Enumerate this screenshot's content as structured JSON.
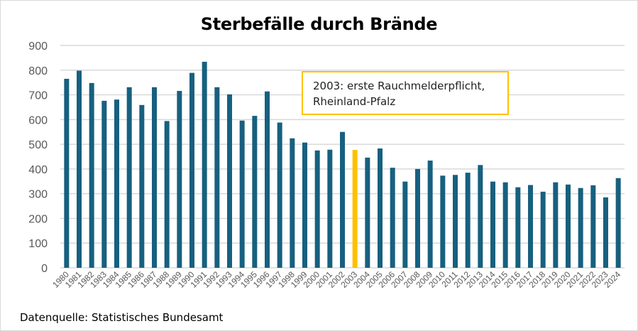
{
  "chart_data": {
    "type": "bar",
    "title": "Sterbefälle durch Brände",
    "xlabel": "",
    "ylabel": "",
    "ylim": [
      0,
      900
    ],
    "yticks": [
      0,
      100,
      200,
      300,
      400,
      500,
      600,
      700,
      800,
      900
    ],
    "grid": true,
    "categories": [
      "1980",
      "1981",
      "1982",
      "1983",
      "1984",
      "1985",
      "1986",
      "1987",
      "1988",
      "1989",
      "1990",
      "1991",
      "1992",
      "1993",
      "1994",
      "1995",
      "1996",
      "1997",
      "1998",
      "1999",
      "2000",
      "2001",
      "2002",
      "2003",
      "2004",
      "2005",
      "2006",
      "2007",
      "2008",
      "2009",
      "2010",
      "2011",
      "2012",
      "2013",
      "2014",
      "2015",
      "2016",
      "2017",
      "2018",
      "2019",
      "2020",
      "2021",
      "2022",
      "2023",
      "2024"
    ],
    "values": [
      765,
      798,
      748,
      676,
      681,
      731,
      659,
      731,
      594,
      716,
      789,
      834,
      731,
      702,
      596,
      615,
      714,
      588,
      524,
      507,
      475,
      478,
      550,
      477,
      446,
      483,
      405,
      349,
      400,
      434,
      373,
      376,
      385,
      416,
      349,
      346,
      326,
      335,
      308,
      346,
      337,
      323,
      334,
      285,
      363
    ],
    "highlight_category": "2003",
    "colors": {
      "bar": "#17607F",
      "highlight": "#FFC000",
      "grid": "#d9d9d9"
    },
    "annotation": {
      "line1": "2003: erste Rauchmelderpflicht,",
      "line2": "Rheinland-Pfalz"
    },
    "source": "Datenquelle: Statistisches Bundesamt"
  }
}
